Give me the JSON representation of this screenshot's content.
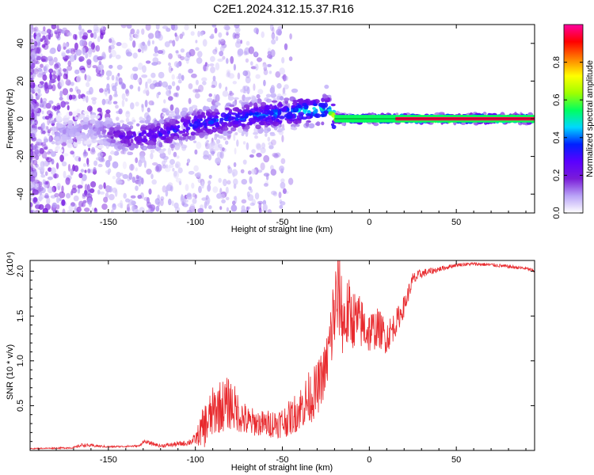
{
  "title": "C2E1.2024.312.15.37.R16",
  "chart_data": [
    {
      "type": "heatmap",
      "name": "spectrogram",
      "xlabel": "Height of straight line (km)",
      "ylabel": "Frequency (Hz)",
      "xlim": [
        -195,
        95
      ],
      "ylim": [
        -50,
        50
      ],
      "xticks": [
        -150,
        -100,
        -50,
        0,
        50
      ],
      "yticks": [
        -40,
        -20,
        0,
        20,
        40
      ],
      "colorbar": {
        "label": "Normalized spectral amplitude",
        "range": [
          0,
          1
        ],
        "ticks": [
          0.0,
          0.2,
          0.4,
          0.6,
          0.8
        ],
        "colors": [
          "#ffffff",
          "#b9a3f7",
          "#7a1cd8",
          "#5a00ff",
          "#0020ff",
          "#00d8ff",
          "#00ff60",
          "#a0ff00",
          "#ffff00",
          "#ff8000",
          "#ff0000",
          "#ff00a0"
        ]
      },
      "ridge": {
        "x": [
          -175,
          -160,
          -140,
          -120,
          -100,
          -80,
          -60,
          -40,
          -25,
          -20,
          0,
          20,
          95
        ],
        "y": [
          -7,
          -5,
          -10,
          -8,
          -3,
          0,
          2,
          4,
          5,
          0,
          0,
          0,
          0
        ],
        "peak_amplitude": [
          0.12,
          0.12,
          0.3,
          0.35,
          0.4,
          0.42,
          0.45,
          0.5,
          0.55,
          0.8,
          0.9,
          1.0,
          1.0
        ]
      }
    },
    {
      "type": "line",
      "name": "snr",
      "xlabel": "Height of straight line (km)",
      "ylabel": "SNR (10 * v/v)",
      "multiplier": "(x10⁴)",
      "xlim": [
        -195,
        95
      ],
      "ylim": [
        0,
        2.12
      ],
      "xticks": [
        -150,
        -100,
        -50,
        0,
        50
      ],
      "yticks": [
        0.5,
        1.0,
        1.5,
        2.0
      ],
      "ytick_labels": [
        "0.5",
        "1.0",
        "1.5",
        "2.0"
      ],
      "color": "#e8292d",
      "series": {
        "x": [
          -195,
          -170,
          -165,
          -150,
          -132,
          -130,
          -120,
          -105,
          -100,
          -95,
          -88,
          -80,
          -75,
          -70,
          -65,
          -60,
          -50,
          -45,
          -40,
          -35,
          -30,
          -25,
          -22,
          -20,
          -17,
          -15,
          -12,
          -10,
          -5,
          0,
          5,
          10,
          15,
          20,
          25,
          30,
          40,
          50,
          60,
          70,
          80,
          90,
          95
        ],
        "y": [
          0.02,
          0.03,
          0.06,
          0.04,
          0.05,
          0.1,
          0.05,
          0.08,
          0.12,
          0.25,
          0.45,
          0.5,
          0.4,
          0.3,
          0.3,
          0.28,
          0.3,
          0.35,
          0.45,
          0.55,
          0.65,
          0.9,
          1.25,
          1.55,
          1.7,
          1.4,
          1.5,
          1.45,
          1.4,
          1.3,
          1.35,
          1.25,
          1.4,
          1.6,
          1.9,
          1.97,
          2.02,
          2.07,
          2.08,
          2.07,
          2.05,
          2.03,
          2.0
        ],
        "noise": [
          0.005,
          0.01,
          0.02,
          0.01,
          0.01,
          0.02,
          0.02,
          0.03,
          0.06,
          0.25,
          0.3,
          0.3,
          0.22,
          0.18,
          0.15,
          0.15,
          0.18,
          0.2,
          0.25,
          0.3,
          0.3,
          0.3,
          0.45,
          0.55,
          0.5,
          0.45,
          0.4,
          0.35,
          0.3,
          0.25,
          0.22,
          0.2,
          0.15,
          0.12,
          0.08,
          0.05,
          0.03,
          0.02,
          0.02,
          0.02,
          0.02,
          0.02,
          0.02
        ]
      }
    }
  ]
}
